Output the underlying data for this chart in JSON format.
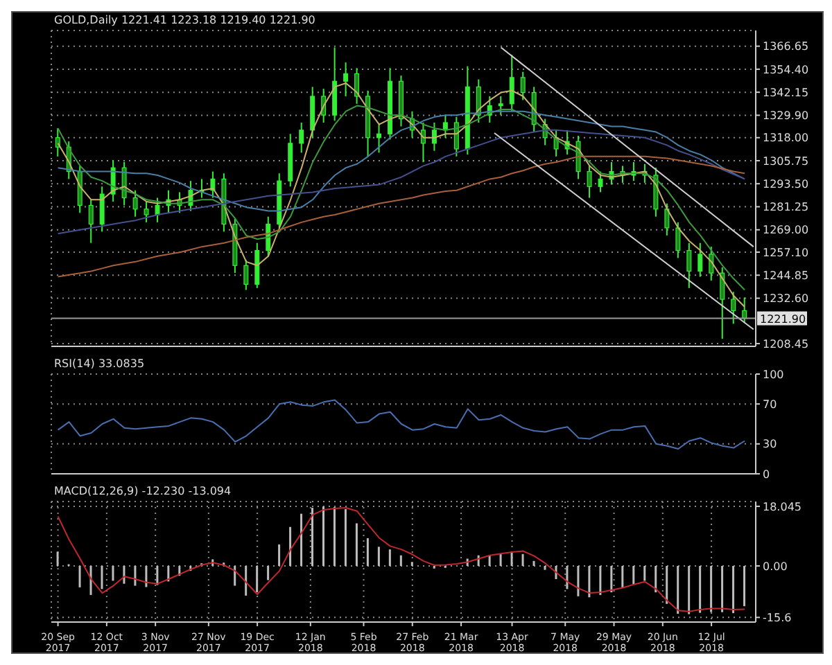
{
  "chart_data": [
    {
      "type": "candlestick",
      "title": "GOLD,Daily 1221.41 1223.18 1219.40 1221.90",
      "color": "#33ee33",
      "x": [
        "2017-09-20",
        "2017-09-25",
        "2017-09-30",
        "2017-10-05",
        "2017-10-10",
        "2017-10-15",
        "2017-10-20",
        "2017-10-25",
        "2017-10-30",
        "2017-11-04",
        "2017-11-09",
        "2017-11-14",
        "2017-11-19",
        "2017-11-24",
        "2017-11-29",
        "2017-12-04",
        "2017-12-09",
        "2017-12-14",
        "2017-12-19",
        "2017-12-24",
        "2017-12-29",
        "2018-01-03",
        "2018-01-08",
        "2018-01-13",
        "2018-01-18",
        "2018-01-23",
        "2018-01-28",
        "2018-02-02",
        "2018-02-07",
        "2018-02-12",
        "2018-02-17",
        "2018-02-22",
        "2018-02-27",
        "2018-03-04",
        "2018-03-09",
        "2018-03-14",
        "2018-03-19",
        "2018-03-24",
        "2018-03-29",
        "2018-04-03",
        "2018-04-08",
        "2018-04-13",
        "2018-04-18",
        "2018-04-23",
        "2018-04-28",
        "2018-05-03",
        "2018-05-08",
        "2018-05-13",
        "2018-05-18",
        "2018-05-23",
        "2018-05-28",
        "2018-06-02",
        "2018-06-07",
        "2018-06-12",
        "2018-06-17",
        "2018-06-22",
        "2018-06-27",
        "2018-07-02",
        "2018-07-07",
        "2018-07-12",
        "2018-07-17",
        "2018-07-22",
        "2018-07-27"
      ],
      "ohlc": [
        [
          1318,
          1323,
          1308,
          1313
        ],
        [
          1313,
          1316,
          1296,
          1300
        ],
        [
          1300,
          1303,
          1278,
          1282
        ],
        [
          1282,
          1285,
          1262,
          1272
        ],
        [
          1272,
          1292,
          1268,
          1288
        ],
        [
          1288,
          1306,
          1284,
          1302
        ],
        [
          1302,
          1305,
          1282,
          1286
        ],
        [
          1286,
          1290,
          1276,
          1280
        ],
        [
          1280,
          1284,
          1273,
          1277
        ],
        [
          1277,
          1286,
          1273,
          1282
        ],
        [
          1282,
          1290,
          1278,
          1285
        ],
        [
          1285,
          1289,
          1278,
          1282
        ],
        [
          1282,
          1295,
          1279,
          1290
        ],
        [
          1290,
          1296,
          1286,
          1290
        ],
        [
          1290,
          1300,
          1286,
          1296
        ],
        [
          1296,
          1299,
          1268,
          1272
        ],
        [
          1272,
          1275,
          1246,
          1250
        ],
        [
          1250,
          1253,
          1237,
          1240
        ],
        [
          1240,
          1262,
          1238,
          1258
        ],
        [
          1258,
          1276,
          1255,
          1272
        ],
        [
          1272,
          1299,
          1270,
          1295
        ],
        [
          1295,
          1320,
          1292,
          1315
        ],
        [
          1315,
          1326,
          1310,
          1322
        ],
        [
          1322,
          1345,
          1318,
          1340
        ],
        [
          1340,
          1344,
          1326,
          1330
        ],
        [
          1330,
          1366,
          1327,
          1348
        ],
        [
          1348,
          1358,
          1340,
          1352
        ],
        [
          1352,
          1355,
          1336,
          1340
        ],
        [
          1340,
          1343,
          1308,
          1318
        ],
        [
          1318,
          1325,
          1310,
          1320
        ],
        [
          1320,
          1355,
          1317,
          1348
        ],
        [
          1348,
          1351,
          1324,
          1328
        ],
        [
          1328,
          1332,
          1318,
          1322
        ],
        [
          1322,
          1326,
          1305,
          1315
        ],
        [
          1315,
          1326,
          1311,
          1322
        ],
        [
          1322,
          1330,
          1318,
          1326
        ],
        [
          1326,
          1329,
          1308,
          1312
        ],
        [
          1312,
          1356,
          1309,
          1345
        ],
        [
          1345,
          1349,
          1326,
          1330
        ],
        [
          1330,
          1340,
          1326,
          1335
        ],
        [
          1335,
          1340,
          1330,
          1336
        ],
        [
          1336,
          1362,
          1332,
          1350
        ],
        [
          1350,
          1353,
          1338,
          1342
        ],
        [
          1342,
          1345,
          1321,
          1325
        ],
        [
          1325,
          1328,
          1314,
          1318
        ],
        [
          1318,
          1322,
          1308,
          1312
        ],
        [
          1312,
          1322,
          1309,
          1316
        ],
        [
          1316,
          1319,
          1296,
          1300
        ],
        [
          1300,
          1303,
          1286,
          1292
        ],
        [
          1292,
          1300,
          1289,
          1296
        ],
        [
          1296,
          1305,
          1293,
          1300
        ],
        [
          1300,
          1303,
          1294,
          1298
        ],
        [
          1298,
          1305,
          1295,
          1300
        ],
        [
          1300,
          1304,
          1294,
          1298
        ],
        [
          1298,
          1302,
          1276,
          1280
        ],
        [
          1280,
          1283,
          1266,
          1270
        ],
        [
          1270,
          1273,
          1254,
          1258
        ],
        [
          1258,
          1262,
          1238,
          1247
        ],
        [
          1247,
          1262,
          1244,
          1256
        ],
        [
          1256,
          1260,
          1242,
          1246
        ],
        [
          1246,
          1249,
          1211,
          1232
        ],
        [
          1232,
          1236,
          1219,
          1226
        ],
        [
          1226,
          1233,
          1219.4,
          1221.9
        ]
      ],
      "series": [
        {
          "type": "line",
          "color": "#c9b36a",
          "values": [
            1315,
            1305,
            1292,
            1285,
            1285,
            1290,
            1292,
            1288,
            1284,
            1283,
            1284,
            1285,
            1287,
            1290,
            1291,
            1282,
            1265,
            1252,
            1250,
            1255,
            1270,
            1285,
            1302,
            1322,
            1335,
            1345,
            1347,
            1342,
            1333,
            1325,
            1328,
            1330,
            1325,
            1318,
            1318,
            1320,
            1320,
            1325,
            1333,
            1338,
            1342,
            1343,
            1340,
            1333,
            1325,
            1318,
            1315,
            1312,
            1303,
            1298,
            1297,
            1298,
            1299,
            1300,
            1293,
            1280,
            1270,
            1263,
            1258,
            1252,
            1243,
            1234,
            1228
          ]
        },
        {
          "type": "line",
          "color": "#3f9a3f",
          "values": [
            1323,
            1312,
            1303,
            1297,
            1295,
            1292,
            1290,
            1288,
            1285,
            1284,
            1283,
            1283,
            1284,
            1285,
            1285,
            1282,
            1275,
            1266,
            1264,
            1265,
            1268,
            1276,
            1290,
            1305,
            1316,
            1325,
            1332,
            1335,
            1334,
            1332,
            1330,
            1330,
            1328,
            1325,
            1323,
            1322,
            1323,
            1325,
            1328,
            1331,
            1333,
            1333,
            1330,
            1327,
            1322,
            1317,
            1313,
            1310,
            1305,
            1299,
            1298,
            1299,
            1299,
            1299,
            1296,
            1290,
            1282,
            1273,
            1266,
            1258,
            1250,
            1243,
            1237
          ]
        },
        {
          "type": "line",
          "color": "#4a7fa8",
          "values": [
            1302,
            1301,
            1300,
            1300,
            1300,
            1300,
            1299.5,
            1299,
            1299,
            1298,
            1296,
            1294,
            1291,
            1289,
            1287,
            1285,
            1283,
            1281,
            1280,
            1279,
            1279,
            1280,
            1281,
            1285,
            1292,
            1298,
            1302,
            1304,
            1308,
            1313,
            1318,
            1322,
            1324,
            1327,
            1329,
            1330,
            1330,
            1331,
            1331,
            1332,
            1332,
            1332,
            1332,
            1331,
            1330,
            1329,
            1328,
            1327,
            1326,
            1325,
            1324,
            1324,
            1323,
            1322,
            1321,
            1318,
            1314,
            1311,
            1309,
            1306,
            1302,
            1299,
            1296
          ]
        },
        {
          "type": "line",
          "color": "#45508f",
          "values": [
            1267,
            1268,
            1269,
            1270,
            1271,
            1272,
            1273,
            1274,
            1275.5,
            1277,
            1278,
            1279,
            1280,
            1281,
            1282,
            1283,
            1284,
            1285,
            1286,
            1287,
            1287.5,
            1288,
            1288.5,
            1289,
            1290,
            1291,
            1291.5,
            1292,
            1292.5,
            1293,
            1295,
            1297,
            1300,
            1303,
            1305,
            1308,
            1310,
            1312,
            1314,
            1316,
            1318,
            1319,
            1320,
            1321,
            1322,
            1322,
            1321.5,
            1321,
            1320.5,
            1320,
            1319.5,
            1319,
            1318.5,
            1318,
            1316,
            1314,
            1311,
            1309,
            1306.5,
            1304,
            1301,
            1298.5,
            1296
          ]
        },
        {
          "type": "line",
          "color": "#a8603c",
          "values": [
            1244,
            1245,
            1246,
            1247,
            1248.5,
            1250,
            1251,
            1252,
            1253.5,
            1255,
            1256,
            1257,
            1258.5,
            1260,
            1261,
            1262,
            1263.5,
            1265,
            1266,
            1267,
            1269,
            1271,
            1273,
            1274.5,
            1276,
            1277,
            1278.5,
            1280,
            1281.5,
            1283,
            1284,
            1285,
            1286,
            1287.5,
            1288.5,
            1289.5,
            1290,
            1292,
            1294,
            1296,
            1297,
            1299,
            1300.5,
            1302.5,
            1304,
            1305,
            1306.5,
            1308,
            1308,
            1308,
            1308,
            1308,
            1308,
            1308,
            1307.5,
            1307,
            1306,
            1305,
            1304,
            1303,
            1301.5,
            1300,
            1299
          ]
        },
        {
          "type": "line",
          "color": "#d0d0d0",
          "x": [
            "2018-04-08",
            "2018-07-31"
          ],
          "values": [
            1366,
            1260
          ]
        },
        {
          "type": "line",
          "color": "#d0d0d0",
          "x": [
            "2018-04-05",
            "2018-07-31"
          ],
          "values": [
            1320.5,
            1216
          ]
        }
      ],
      "xlim": [
        "2017-09-17",
        "2018-08-01"
      ],
      "xticks": [
        "2017-09-20",
        "2017-10-12",
        "2017-11-03",
        "2017-11-27",
        "2017-12-19",
        "2018-01-12",
        "2018-02-05",
        "2018-02-27",
        "2018-03-21",
        "2018-04-13",
        "2018-05-07",
        "2018-05-29",
        "2018-06-20",
        "2018-07-12"
      ],
      "ylim": [
        1207,
        1375
      ],
      "yticks": [
        {
          "value": 1208.45,
          "label": "1208.45"
        },
        {
          "value": 1232.6,
          "label": "1232.60"
        },
        {
          "value": 1244.85,
          "label": "1244.85"
        },
        {
          "value": 1257.1,
          "label": "1257.10"
        },
        {
          "value": 1269,
          "label": "1269.00"
        },
        {
          "value": 1281.25,
          "label": "1281.25"
        },
        {
          "value": 1293.5,
          "label": "1293.50"
        },
        {
          "value": 1305.75,
          "label": "1305.75"
        },
        {
          "value": 1318,
          "label": "1318.00"
        },
        {
          "value": 1329.9,
          "label": "1329.90"
        },
        {
          "value": 1342.15,
          "label": "1342.15"
        },
        {
          "value": 1354.4,
          "label": "1354.40"
        },
        {
          "value": 1366.65,
          "label": "1366.65"
        }
      ],
      "ref_lines": [
        {
          "axis": "y",
          "value": 1221.9,
          "label": "1221.90",
          "color": "#9a9a9a"
        }
      ],
      "grid": true,
      "tick_labels": "y"
    },
    {
      "type": "line",
      "title": "RSI(14) 33.0835",
      "x": [
        "2017-09-20",
        "2017-09-25",
        "2017-09-30",
        "2017-10-05",
        "2017-10-10",
        "2017-10-15",
        "2017-10-20",
        "2017-10-25",
        "2017-10-30",
        "2017-11-04",
        "2017-11-09",
        "2017-11-14",
        "2017-11-19",
        "2017-11-24",
        "2017-11-29",
        "2017-12-04",
        "2017-12-09",
        "2017-12-14",
        "2017-12-19",
        "2017-12-24",
        "2017-12-29",
        "2018-01-03",
        "2018-01-08",
        "2018-01-13",
        "2018-01-18",
        "2018-01-23",
        "2018-01-28",
        "2018-02-02",
        "2018-02-07",
        "2018-02-12",
        "2018-02-17",
        "2018-02-22",
        "2018-02-27",
        "2018-03-04",
        "2018-03-09",
        "2018-03-14",
        "2018-03-19",
        "2018-03-24",
        "2018-03-29",
        "2018-04-03",
        "2018-04-08",
        "2018-04-13",
        "2018-04-18",
        "2018-04-23",
        "2018-04-28",
        "2018-05-03",
        "2018-05-08",
        "2018-05-13",
        "2018-05-18",
        "2018-05-23",
        "2018-05-28",
        "2018-06-02",
        "2018-06-07",
        "2018-06-12",
        "2018-06-17",
        "2018-06-22",
        "2018-06-27",
        "2018-07-02",
        "2018-07-07",
        "2018-07-12",
        "2018-07-17",
        "2018-07-22",
        "2018-07-27"
      ],
      "series": [
        {
          "color": "#4a6fb0",
          "values": [
            44,
            52,
            38,
            41,
            50,
            55,
            46,
            45,
            46,
            47,
            48,
            52,
            56,
            55,
            52,
            44,
            32,
            38,
            47,
            56,
            70,
            72,
            69,
            68,
            72,
            74,
            64,
            51,
            52,
            60,
            62,
            50,
            44,
            45,
            50,
            47,
            46,
            65,
            54,
            55,
            59,
            52,
            46,
            43,
            42,
            45,
            47,
            36,
            35,
            40,
            44,
            44,
            47,
            48,
            30,
            28,
            25,
            33,
            36,
            31,
            28,
            26,
            33
          ]
        }
      ],
      "xlim": [
        "2017-09-17",
        "2018-08-01"
      ],
      "xticks": [
        "2017-09-20",
        "2017-10-12",
        "2017-11-03",
        "2017-11-27",
        "2017-12-19",
        "2018-01-12",
        "2018-02-05",
        "2018-02-27",
        "2018-03-21",
        "2018-04-13",
        "2018-05-07",
        "2018-05-29",
        "2018-06-20",
        "2018-07-12"
      ],
      "ylim": [
        0,
        100
      ],
      "yticks": [
        0,
        30,
        70,
        100
      ],
      "grid": true,
      "tick_labels": "y"
    },
    {
      "type": "bar",
      "title": "MACD(12,26,9) -12.230 -13.094",
      "x": [
        "2017-09-20",
        "2017-09-25",
        "2017-09-30",
        "2017-10-05",
        "2017-10-10",
        "2017-10-15",
        "2017-10-20",
        "2017-10-25",
        "2017-10-30",
        "2017-11-04",
        "2017-11-09",
        "2017-11-14",
        "2017-11-19",
        "2017-11-24",
        "2017-11-29",
        "2017-12-04",
        "2017-12-09",
        "2017-12-14",
        "2017-12-19",
        "2017-12-24",
        "2017-12-29",
        "2018-01-03",
        "2018-01-08",
        "2018-01-13",
        "2018-01-18",
        "2018-01-23",
        "2018-01-28",
        "2018-02-02",
        "2018-02-07",
        "2018-02-12",
        "2018-02-17",
        "2018-02-22",
        "2018-02-27",
        "2018-03-04",
        "2018-03-09",
        "2018-03-14",
        "2018-03-19",
        "2018-03-24",
        "2018-03-29",
        "2018-04-03",
        "2018-04-08",
        "2018-04-13",
        "2018-04-18",
        "2018-04-23",
        "2018-04-28",
        "2018-05-03",
        "2018-05-08",
        "2018-05-13",
        "2018-05-18",
        "2018-05-23",
        "2018-05-28",
        "2018-06-02",
        "2018-06-07",
        "2018-06-12",
        "2018-06-17",
        "2018-06-22",
        "2018-06-27",
        "2018-07-02",
        "2018-07-07",
        "2018-07-12",
        "2018-07-17",
        "2018-07-22",
        "2018-07-27"
      ],
      "series": [
        {
          "type": "bar",
          "color": "#bdbdbd",
          "values": [
            4.3,
            0.5,
            -6.5,
            -8.8,
            -7,
            -4.5,
            -5.4,
            -6,
            -6.4,
            -5.8,
            -4.7,
            -3,
            -1.5,
            0.8,
            2,
            1,
            -6,
            -9,
            -8,
            -4.3,
            6.5,
            11.8,
            15.8,
            17.6,
            18,
            17.8,
            17.2,
            12.9,
            8.4,
            5.8,
            5,
            3.2,
            1.2,
            0,
            -0.8,
            -0.6,
            0,
            2.2,
            3.2,
            3.2,
            3.6,
            4.3,
            3.6,
            1.5,
            -1.2,
            -4,
            -7,
            -9.2,
            -9.5,
            -8.8,
            -8,
            -6.5,
            -5.5,
            -4.5,
            -8,
            -11.5,
            -14.5,
            -14.6,
            -14.2,
            -14,
            -14,
            -14.3,
            -12.2
          ]
        },
        {
          "type": "line",
          "color": "#c0282d",
          "values": [
            15,
            8,
            2.2,
            -4,
            -8.2,
            -6,
            -3.2,
            -4,
            -5,
            -5.4,
            -4,
            -2.5,
            -1,
            0.3,
            1,
            0.2,
            -1.5,
            -5,
            -8.6,
            -5,
            -1.5,
            5,
            10,
            15.5,
            17,
            17.4,
            17.6,
            16.6,
            12.5,
            8.5,
            6,
            5,
            3.5,
            1.5,
            0.2,
            0.3,
            0.6,
            1.2,
            2.2,
            3.2,
            3.7,
            4.2,
            4.5,
            3,
            0.8,
            -2,
            -4.8,
            -6.8,
            -8.2,
            -8,
            -7.3,
            -6.6,
            -5.6,
            -4.8,
            -7,
            -10.5,
            -13.5,
            -13.8,
            -13.2,
            -12.9,
            -12.9,
            -13.2,
            -13.1
          ]
        }
      ],
      "xlim": [
        "2017-09-17",
        "2018-08-01"
      ],
      "xticks": [
        {
          "value": "2017-09-20",
          "label": "20 Sep 2017"
        },
        {
          "value": "2017-10-12",
          "label": "12 Oct 2017"
        },
        {
          "value": "2017-11-03",
          "label": "3 Nov 2017"
        },
        {
          "value": "2017-11-27",
          "label": "27 Nov 2017"
        },
        {
          "value": "2017-12-19",
          "label": "19 Dec 2017"
        },
        {
          "value": "2018-01-12",
          "label": "12 Jan 2018"
        },
        {
          "value": "2018-02-05",
          "label": "5 Feb 2018"
        },
        {
          "value": "2018-02-27",
          "label": "27 Feb 2018"
        },
        {
          "value": "2018-03-21",
          "label": "21 Mar 2018"
        },
        {
          "value": "2018-04-13",
          "label": "13 Apr 2018"
        },
        {
          "value": "2018-05-07",
          "label": "7 May 2018"
        },
        {
          "value": "2018-05-29",
          "label": "29 May 2018"
        },
        {
          "value": "2018-06-20",
          "label": "20 Jun 2018"
        },
        {
          "value": "2018-07-12",
          "label": "12 Jul 2018"
        }
      ],
      "ylim": [
        -17,
        19.5
      ],
      "yticks": [
        {
          "value": 18.045,
          "label": "18.045"
        },
        {
          "value": 0,
          "label": "0.00"
        },
        {
          "value": -15.6,
          "label": "-15.6"
        }
      ],
      "grid": true
    }
  ]
}
